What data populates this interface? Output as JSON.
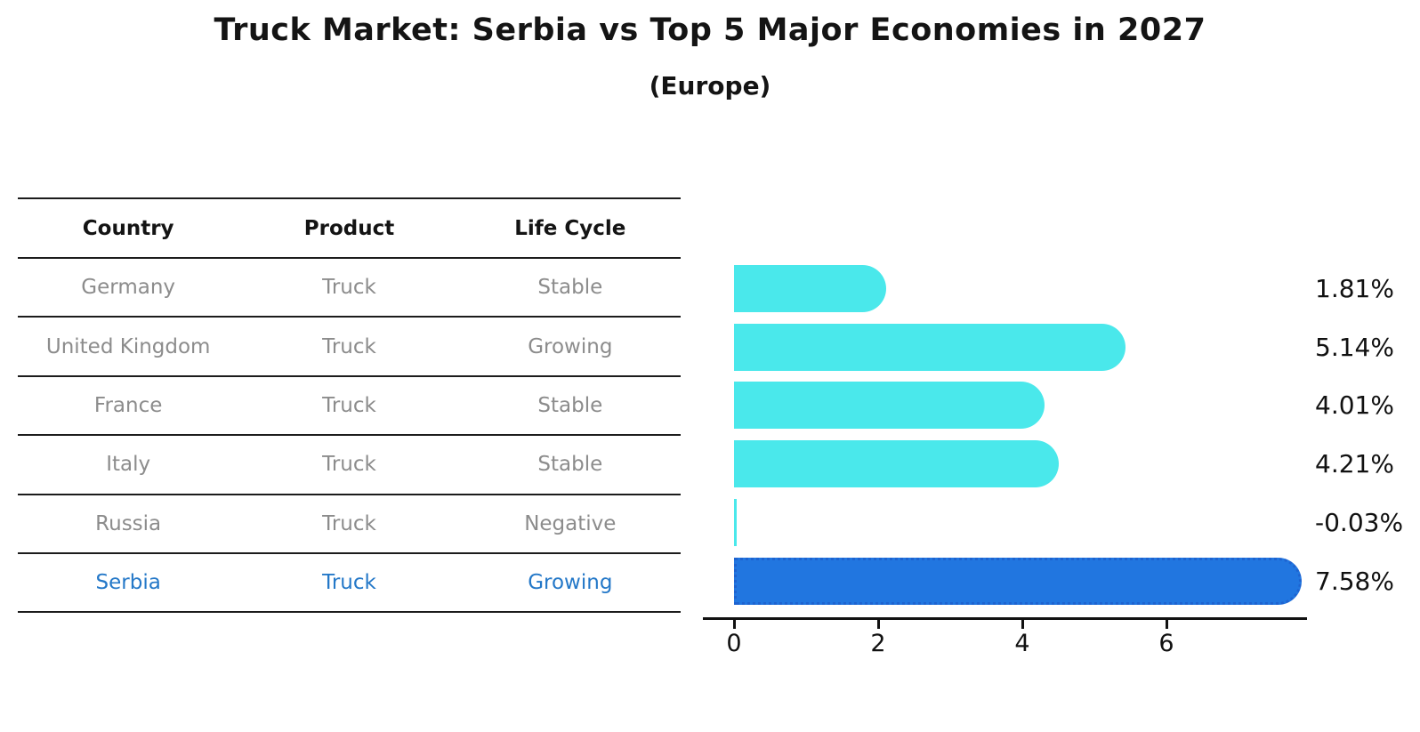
{
  "chart_data": {
    "type": "bar",
    "orientation": "horizontal",
    "title": "Truck Market: Serbia vs Top 5 Major Economies in 2027",
    "subtitle": "(Europe)",
    "categories": [
      "Germany",
      "United Kingdom",
      "France",
      "Italy",
      "Russia",
      "Serbia"
    ],
    "values": [
      1.81,
      5.14,
      4.01,
      4.21,
      -0.03,
      7.58
    ],
    "value_labels": [
      "1.81%",
      "5.14%",
      "4.01%",
      "4.21%",
      "-0.03%",
      "7.58%"
    ],
    "x_ticks": [
      "0",
      "2",
      "4",
      "6"
    ],
    "x_tick_values": [
      0,
      2,
      4,
      6
    ],
    "xlim": [
      -0.45,
      7.95
    ],
    "grid": false,
    "legend": "none",
    "highlight_index": 5,
    "colors": {
      "bar": "#4AE8EB",
      "highlight_bar": "#2176E0",
      "highlight_edge": "#1E63D0",
      "axis": "#111111",
      "value_label": "#111111"
    }
  },
  "table": {
    "headers": [
      "Country",
      "Product",
      "Life Cycle"
    ],
    "rows": [
      [
        "Germany",
        "Truck",
        "Stable"
      ],
      [
        "United Kingdom",
        "Truck",
        "Growing"
      ],
      [
        "France",
        "Truck",
        "Stable"
      ],
      [
        "Italy",
        "Truck",
        "Stable"
      ],
      [
        "Russia",
        "Truck",
        "Negative"
      ],
      [
        "Serbia",
        "Truck",
        "Growing"
      ]
    ],
    "highlight_row_index": 5,
    "colors": {
      "header_text": "#141414",
      "body_text": "#8C8C8C",
      "highlight_text": "#2478C8"
    }
  }
}
